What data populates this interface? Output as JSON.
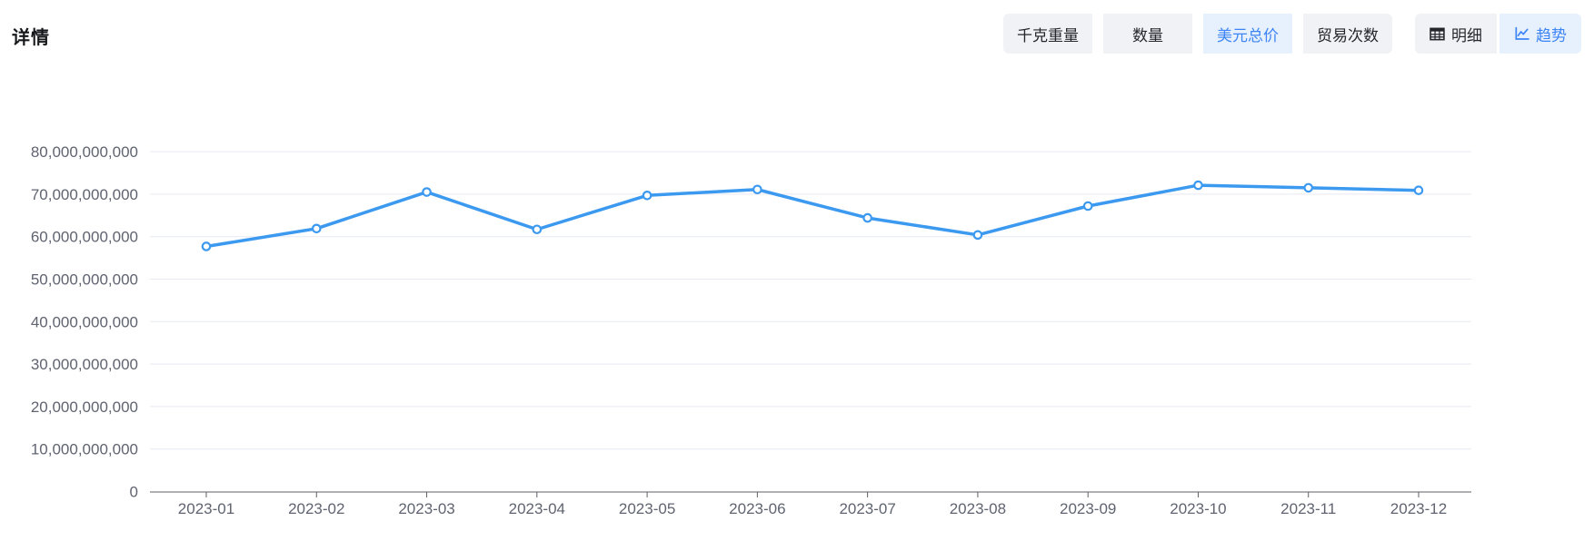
{
  "header": {
    "title": "详情",
    "metric_tabs": [
      {
        "label": "千克重量",
        "active": false
      },
      {
        "label": "数量",
        "active": false
      },
      {
        "label": "美元总价",
        "active": true
      },
      {
        "label": "贸易次数",
        "active": false
      }
    ],
    "view_tabs": [
      {
        "label": "明细",
        "icon": "table-icon",
        "active": false
      },
      {
        "label": "趋势",
        "icon": "trend-chart-icon",
        "active": true
      }
    ]
  },
  "colors": {
    "accent": "#3d84f5",
    "accent_bg": "#e7f1fd",
    "tab_bg": "#f1f2f5",
    "tab_text": "#24262b",
    "line": "#3c99f0",
    "marker_fill": "#ffffff",
    "axis": "#5d5f66",
    "axis_label": "#5f6470",
    "gridline": "#e6e9f2"
  },
  "chart_data": {
    "type": "line",
    "title": "",
    "xlabel": "",
    "ylabel": "",
    "x": [
      "2023-01",
      "2023-02",
      "2023-03",
      "2023-04",
      "2023-05",
      "2023-06",
      "2023-07",
      "2023-08",
      "2023-09",
      "2023-10",
      "2023-11",
      "2023-12"
    ],
    "series": [
      {
        "name": "美元总价",
        "values": [
          57700000000,
          61900000000,
          70500000000,
          61700000000,
          69700000000,
          71100000000,
          64400000000,
          60400000000,
          67200000000,
          72100000000,
          71500000000,
          70900000000
        ]
      }
    ],
    "ylim": [
      0,
      80000000000
    ],
    "y_tick_step": 10000000000,
    "grid": true,
    "legend_position": "none",
    "marker": "empty-circle"
  }
}
